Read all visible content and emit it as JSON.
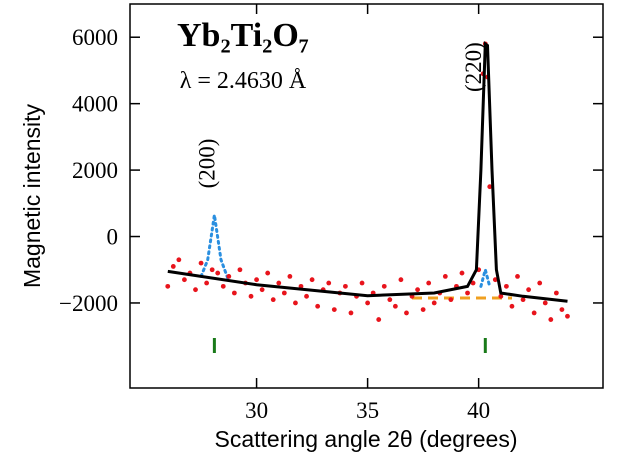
{
  "chart_data": {
    "type": "scatter",
    "title": "Yb₂Ti₂O₇",
    "subtitle": "λ = 2.4630 Å",
    "x_label": "Scattering angle 2θ (degrees)",
    "y_label": "Magnetic intensity",
    "annotations": [
      {
        "text": "(200)",
        "x": 28.1,
        "y": 2200
      },
      {
        "text": "(220)",
        "x": 40.1,
        "y": 5100
      }
    ],
    "xlim": [
      24.3,
      45.6
    ],
    "ylim": [
      -4560,
      7000
    ],
    "xticks": [
      30,
      35,
      40
    ],
    "yticks": [
      {
        "value": -2000,
        "label": "−2000"
      },
      0,
      2000,
      4000,
      6000
    ],
    "peak_positions": {
      "color": "#1a7a1a",
      "x": [
        28.1,
        40.3
      ]
    },
    "series": [
      {
        "kind": "scatter",
        "color": "#e8141c",
        "x": [
          26.0,
          26.25,
          26.5,
          26.75,
          27.0,
          27.25,
          27.5,
          27.75,
          28.0,
          28.25,
          28.5,
          28.75,
          29.0,
          29.25,
          29.5,
          29.75,
          30.0,
          30.25,
          30.5,
          30.75,
          31.0,
          31.25,
          31.5,
          31.75,
          32.0,
          32.25,
          32.5,
          32.75,
          33.0,
          33.25,
          33.5,
          33.75,
          34.0,
          34.25,
          34.5,
          34.75,
          35.0,
          35.25,
          35.5,
          35.75,
          36.0,
          36.25,
          36.5,
          36.75,
          37.0,
          37.25,
          37.5,
          37.75,
          38.0,
          38.25,
          38.5,
          38.75,
          39.0,
          39.25,
          39.5,
          39.75,
          40.0,
          40.2,
          40.3,
          40.4,
          40.5,
          40.75,
          41.0,
          41.25,
          41.5,
          41.75,
          42.0,
          42.25,
          42.5,
          42.75,
          43.0,
          43.25,
          43.5,
          43.75,
          44.0
        ],
        "values": [
          -1500,
          -900,
          -700,
          -1300,
          -1100,
          -1600,
          -800,
          -1400,
          -1000,
          -1100,
          -1500,
          -1200,
          -1700,
          -1000,
          -1400,
          -1800,
          -1300,
          -1600,
          -1100,
          -1900,
          -1400,
          -1700,
          -1200,
          -2000,
          -1500,
          -1800,
          -1300,
          -2100,
          -1600,
          -1400,
          -2200,
          -1700,
          -1500,
          -2300,
          -1800,
          -1400,
          -2000,
          -1700,
          -2500,
          -1500,
          -1900,
          -2100,
          -1300,
          -2300,
          -1800,
          -1600,
          -2200,
          -1400,
          -2000,
          -1700,
          -1200,
          -1900,
          -1500,
          -1100,
          -1700,
          -1400,
          -1000,
          4900,
          5800,
          4800,
          1500,
          -1300,
          -1800,
          -1500,
          -2100,
          -1200,
          -1900,
          -1600,
          -2300,
          -1400,
          -2000,
          -2500,
          -1700,
          -2200,
          -2400
        ]
      },
      {
        "kind": "line",
        "style": "solid",
        "color": "#000000",
        "x": [
          26,
          30,
          35,
          38,
          39.5,
          39.9,
          40.1,
          40.3,
          40.4,
          40.6,
          40.8,
          41,
          42,
          44
        ],
        "values": [
          -1050,
          -1450,
          -1780,
          -1700,
          -1500,
          -1000,
          2000,
          5800,
          5750,
          2000,
          -1000,
          -1700,
          -1800,
          -1950
        ]
      },
      {
        "kind": "line",
        "style": "dotted",
        "color": "#2a8fe0",
        "x": [
          27.5,
          27.8,
          28.0,
          28.1,
          28.2,
          28.4,
          28.7,
          39.8,
          40.1,
          40.3,
          40.5,
          40.8
        ],
        "values": [
          -1200,
          -700,
          200,
          650,
          200,
          -700,
          -1250,
          null,
          -1500,
          -1000,
          -1500,
          null
        ]
      },
      {
        "kind": "line",
        "style": "dashed",
        "color": "#f0a020",
        "x": [
          37,
          41.5
        ],
        "values": [
          -1850,
          -1850
        ]
      }
    ]
  }
}
